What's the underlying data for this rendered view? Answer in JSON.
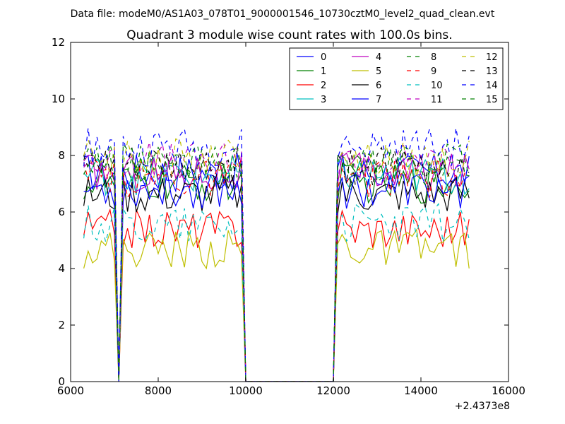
{
  "figure": {
    "suptitle": "Data file: modeM0/AS1A03_078T01_9000001546_10730cztM0_level2_quad_clean.evt",
    "title": "Quadrant 3 module wise count rates with 100.0s bins.",
    "x_offset_label": "+2.4373e8"
  },
  "chart_data": {
    "type": "line",
    "title": "Quadrant 3 module wise count rates with 100.0s bins.",
    "xlabel": "",
    "ylabel": "",
    "x_offset": 243730000,
    "xlim": [
      6000,
      16000
    ],
    "ylim": [
      0,
      12
    ],
    "x_ticks": [
      6000,
      8000,
      10000,
      12000,
      14000,
      16000
    ],
    "y_ticks": [
      0,
      2,
      4,
      6,
      8,
      10,
      12
    ],
    "x_tick_labels": [
      "6000",
      "8000",
      "10000",
      "12000",
      "14000",
      "16000"
    ],
    "y_tick_labels": [
      "0",
      "2",
      "4",
      "6",
      "8",
      "10",
      "12"
    ],
    "grid": false,
    "legend_position": "top-right",
    "segment_breaks": [
      {
        "from": 6300,
        "to": 15150,
        "note": "gap to zero between ~7000-7150 and ~9950-12050"
      }
    ],
    "series": [
      {
        "name": "0",
        "color": "#0000ff",
        "dash": "solid",
        "level": 7.4,
        "dip": 0.0,
        "spike": 1.6
      },
      {
        "name": "1",
        "color": "#008000",
        "dash": "solid",
        "level": 7.0,
        "dip": 0.0,
        "spike": 1.8
      },
      {
        "name": "2",
        "color": "#ff0000",
        "dash": "solid",
        "level": 5.4,
        "dip": 0.0,
        "spike": 1.5
      },
      {
        "name": "3",
        "color": "#00bfbf",
        "dash": "solid",
        "level": 7.3,
        "dip": 0.0,
        "spike": 2.8
      },
      {
        "name": "4",
        "color": "#bf00bf",
        "dash": "solid",
        "level": 7.4,
        "dip": 0.0,
        "spike": 1.6
      },
      {
        "name": "5",
        "color": "#bfbf00",
        "dash": "solid",
        "level": 4.7,
        "dip": 0.0,
        "spike": 1.4
      },
      {
        "name": "6",
        "color": "#000000",
        "dash": "solid",
        "level": 6.6,
        "dip": 0.0,
        "spike": 1.6
      },
      {
        "name": "7",
        "color": "#0000ff",
        "dash": "solid",
        "level": 6.8,
        "dip": 0.0,
        "spike": 1.6
      },
      {
        "name": "8",
        "color": "#008000",
        "dash": "dashed",
        "level": 7.6,
        "dip": 0.0,
        "spike": 1.3
      },
      {
        "name": "9",
        "color": "#ff0000",
        "dash": "dashed",
        "level": 7.2,
        "dip": 0.0,
        "spike": 1.3
      },
      {
        "name": "10",
        "color": "#00bfbf",
        "dash": "dashed",
        "level": 5.6,
        "dip": 0.0,
        "spike": 1.3
      },
      {
        "name": "11",
        "color": "#bf00bf",
        "dash": "dashed",
        "level": 7.8,
        "dip": 0.0,
        "spike": 1.3
      },
      {
        "name": "12",
        "color": "#bfbf00",
        "dash": "dashed",
        "level": 7.9,
        "dip": 0.0,
        "spike": 1.2
      },
      {
        "name": "13",
        "color": "#000000",
        "dash": "dashed",
        "level": 7.6,
        "dip": 0.0,
        "spike": 1.2
      },
      {
        "name": "14",
        "color": "#0000ff",
        "dash": "dashed",
        "level": 8.3,
        "dip": 0.0,
        "spike": 1.1
      },
      {
        "name": "15",
        "color": "#008000",
        "dash": "dashed",
        "level": 7.7,
        "dip": 0.0,
        "spike": 1.2
      }
    ]
  }
}
